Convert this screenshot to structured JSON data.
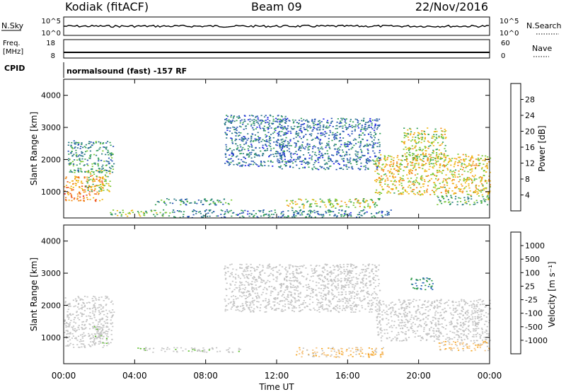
{
  "header": {
    "station": "Kodiak (fitACF)",
    "beam": "Beam 09",
    "date": "22/Nov/2016"
  },
  "summary_panels": {
    "nsky_label": "N.Sky",
    "nsearch_label": "N.Search",
    "freq_label_1": "Freq.",
    "freq_label_2": "[MHz]",
    "nave_label": "Nave",
    "cpid_label": "CPID",
    "cpid_text": "normalsound (fast) -157 RF",
    "noise_ticks": [
      "10^5",
      "10^0"
    ],
    "freq_ticks": [
      "18",
      "8"
    ],
    "nave_ticks": [
      "60",
      "0"
    ]
  },
  "colors": {
    "power_scale": [
      "#1e22e6",
      "#2452b4",
      "#2c7a86",
      "#33a058",
      "#79c832",
      "#f0b814",
      "#f38a1a",
      "#ee5018",
      "#e01010"
    ],
    "velocity_scale": [
      "#e51a1a",
      "#f07818",
      "#f5a41e",
      "#f5c07a",
      "#c4c4c4",
      "#c4c4c4",
      "#5fc22e",
      "#2e9a4a",
      "#2c6ab4",
      "#2a2ad0"
    ]
  },
  "chart_data": [
    {
      "type": "heatmap",
      "title": "",
      "xlabel": "Time UT",
      "ylabel": "Slant Range [km]",
      "xticks": [
        "00:00",
        "04:00",
        "08:00",
        "12:00",
        "16:00",
        "20:00",
        "00:00"
      ],
      "yticks": [
        "1000",
        "2000",
        "3000",
        "4000"
      ],
      "xlim_hours": [
        0,
        24
      ],
      "ylim_km": [
        180,
        4500
      ],
      "colorbar": {
        "label": "Power [dB]",
        "ticks": [
          "4",
          "8",
          "12",
          "16",
          "20",
          "24",
          "28"
        ],
        "range": [
          0,
          30
        ]
      },
      "echo_regions": [
        {
          "t": [
            0.0,
            2.2
          ],
          "r": [
            700,
            1500
          ],
          "value": 22
        },
        {
          "t": [
            1.2,
            2.6
          ],
          "r": [
            1000,
            1700
          ],
          "value": 16
        },
        {
          "t": [
            0.2,
            2.8
          ],
          "r": [
            1600,
            2600
          ],
          "value": 10
        },
        {
          "t": [
            2.6,
            6.0
          ],
          "r": [
            250,
            450
          ],
          "value": 14
        },
        {
          "t": [
            5.0,
            9.5
          ],
          "r": [
            600,
            800
          ],
          "value": 10
        },
        {
          "t": [
            9.0,
            12.5
          ],
          "r": [
            1800,
            3400
          ],
          "value": 7
        },
        {
          "t": [
            12.0,
            17.8
          ],
          "r": [
            1700,
            3300
          ],
          "value": 7
        },
        {
          "t": [
            12.5,
            17.8
          ],
          "r": [
            500,
            800
          ],
          "value": 16
        },
        {
          "t": [
            6.0,
            18.5
          ],
          "r": [
            200,
            450
          ],
          "value": 8
        },
        {
          "t": [
            17.5,
            24.0
          ],
          "r": [
            900,
            2200
          ],
          "value": 18
        },
        {
          "t": [
            19.0,
            21.5
          ],
          "r": [
            2000,
            3000
          ],
          "value": 16
        },
        {
          "t": [
            21.0,
            24.0
          ],
          "r": [
            600,
            900
          ],
          "value": 12
        }
      ]
    },
    {
      "type": "heatmap",
      "title": "",
      "xlabel": "Time UT",
      "ylabel": "Slant Range [km]",
      "xticks": [
        "00:00",
        "04:00",
        "08:00",
        "12:00",
        "16:00",
        "20:00",
        "00:00"
      ],
      "yticks": [
        "1000",
        "2000",
        "3000",
        "4000"
      ],
      "xlim_hours": [
        0,
        24
      ],
      "ylim_km": [
        180,
        4500
      ],
      "colorbar": {
        "label": "Velocity [m s⁻¹]",
        "ticks": [
          "1000",
          "500",
          "100",
          "25",
          "-25",
          "-100",
          "-500",
          "-1000"
        ],
        "range": [
          -1000,
          1000
        ]
      },
      "echo_regions": [
        {
          "t": [
            0.0,
            2.8
          ],
          "r": [
            700,
            2300
          ],
          "value": 0
        },
        {
          "t": [
            1.6,
            2.4
          ],
          "r": [
            800,
            1400
          ],
          "value": 80
        },
        {
          "t": [
            4.0,
            10.0
          ],
          "r": [
            550,
            700
          ],
          "value": 60
        },
        {
          "t": [
            9.0,
            17.8
          ],
          "r": [
            1800,
            3300
          ],
          "value": 0
        },
        {
          "t": [
            13.0,
            18.0
          ],
          "r": [
            400,
            700
          ],
          "value": -300
        },
        {
          "t": [
            17.6,
            24.0
          ],
          "r": [
            900,
            2200
          ],
          "value": 0
        },
        {
          "t": [
            19.5,
            20.8
          ],
          "r": [
            2500,
            2900
          ],
          "value": 600
        },
        {
          "t": [
            21.0,
            24.0
          ],
          "r": [
            600,
            900
          ],
          "value": -300
        }
      ]
    }
  ]
}
